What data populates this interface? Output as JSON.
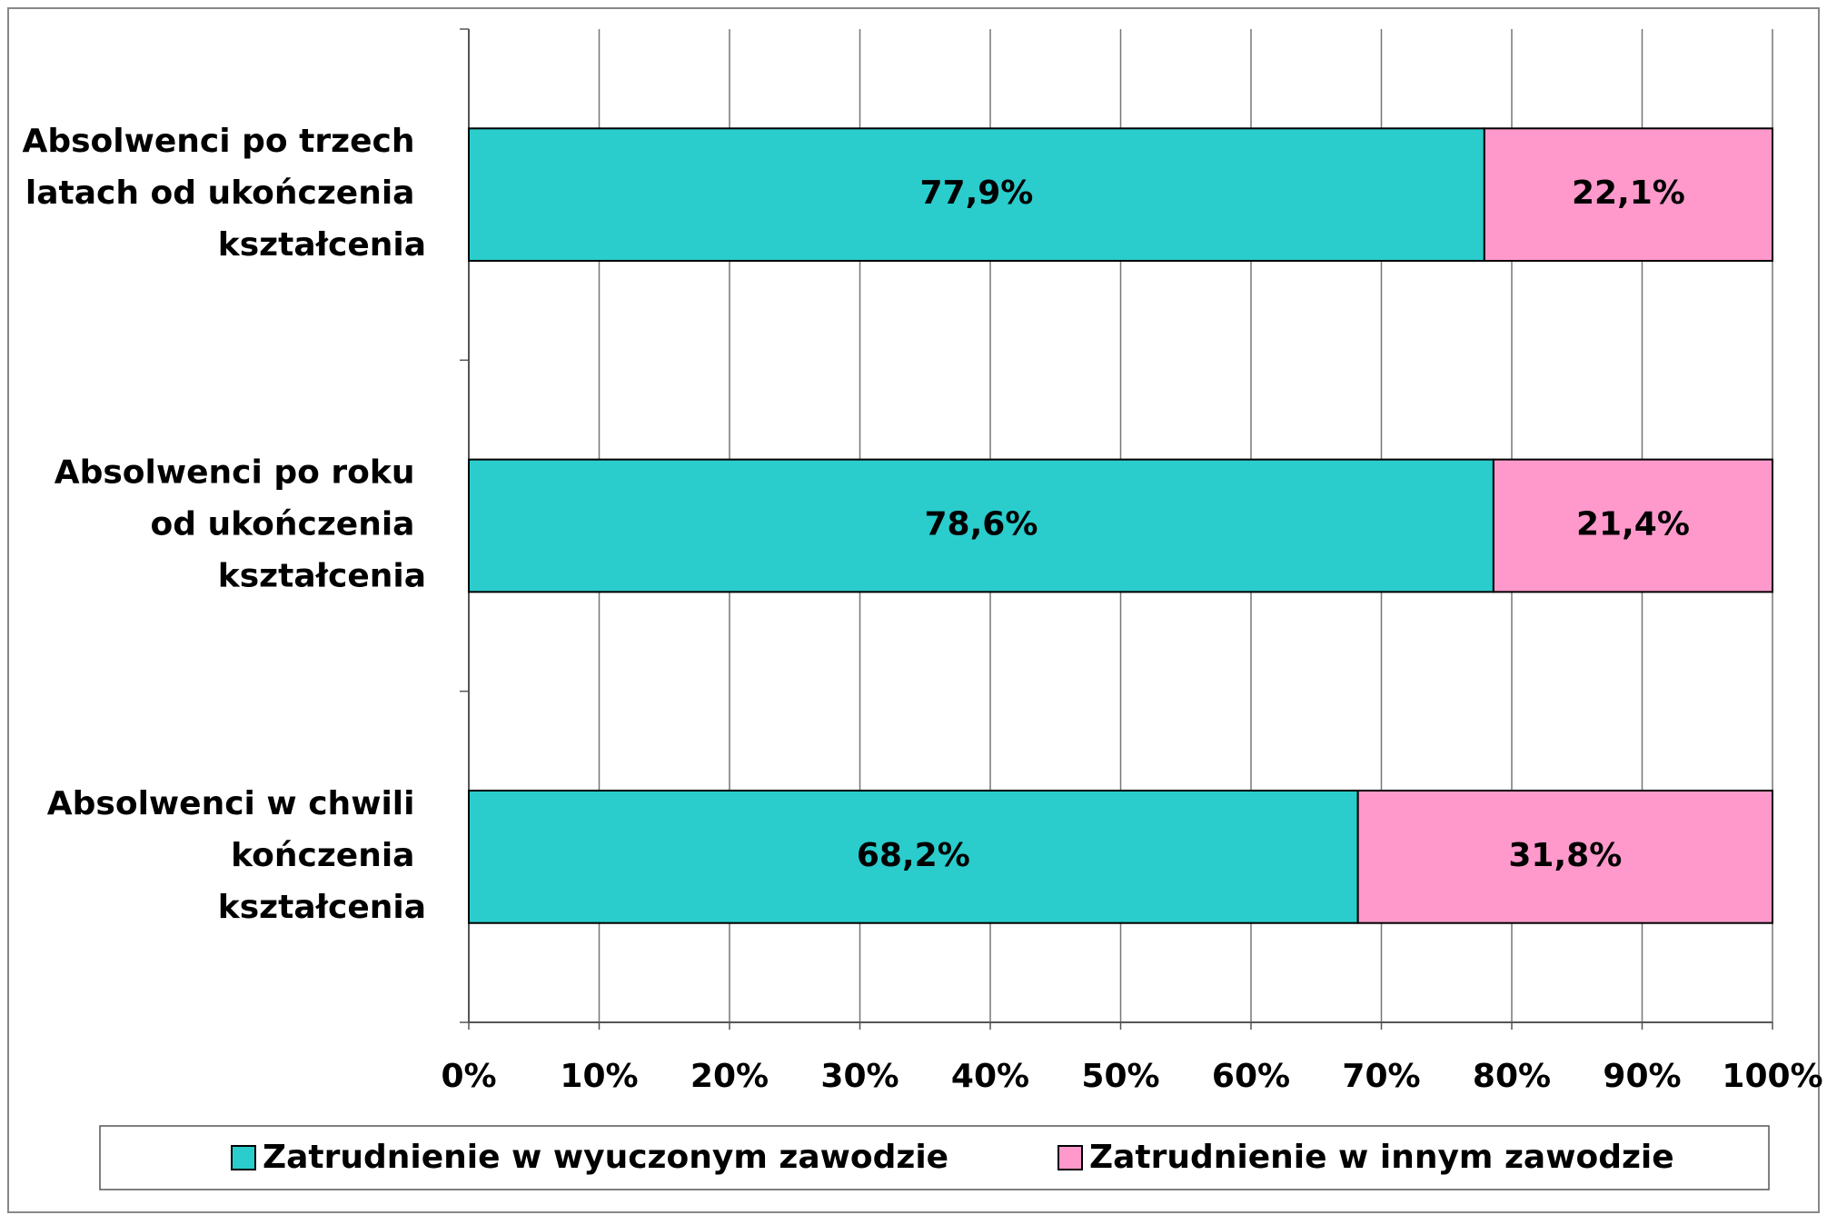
{
  "chart_data": {
    "type": "stacked_barh",
    "categories": [
      "Absolwenci po trzech latach od ukończenia kształcenia",
      "Absolwenci po roku od ukończenia kształcenia",
      "Absolwenci w chwili kończenia kształcenia"
    ],
    "series": [
      {
        "name": "Zatrudnienie w wyuczonym zawodzie",
        "color": "#2acccc",
        "values": [
          77.9,
          78.6,
          68.2
        ],
        "value_labels": [
          "77,9%",
          "78,6%",
          "68,2%"
        ]
      },
      {
        "name": "Zatrudnienie w innym zawodzie",
        "color": "#ff99cc",
        "values": [
          22.1,
          21.4,
          31.8
        ],
        "value_labels": [
          "22,1%",
          "21,4%",
          "31,8%"
        ]
      }
    ],
    "xlim": [
      0,
      100
    ],
    "xticks": [
      {
        "value": 0,
        "label": "0%"
      },
      {
        "value": 10,
        "label": "10%"
      },
      {
        "value": 20,
        "label": "20%"
      },
      {
        "value": 30,
        "label": "30%"
      },
      {
        "value": 40,
        "label": "40%"
      },
      {
        "value": 50,
        "label": "50%"
      },
      {
        "value": 60,
        "label": "60%"
      },
      {
        "value": 70,
        "label": "70%"
      },
      {
        "value": 80,
        "label": "80%"
      },
      {
        "value": 90,
        "label": "90%"
      },
      {
        "value": 100,
        "label": "100%"
      }
    ],
    "grid": true,
    "legend": "bottom"
  }
}
